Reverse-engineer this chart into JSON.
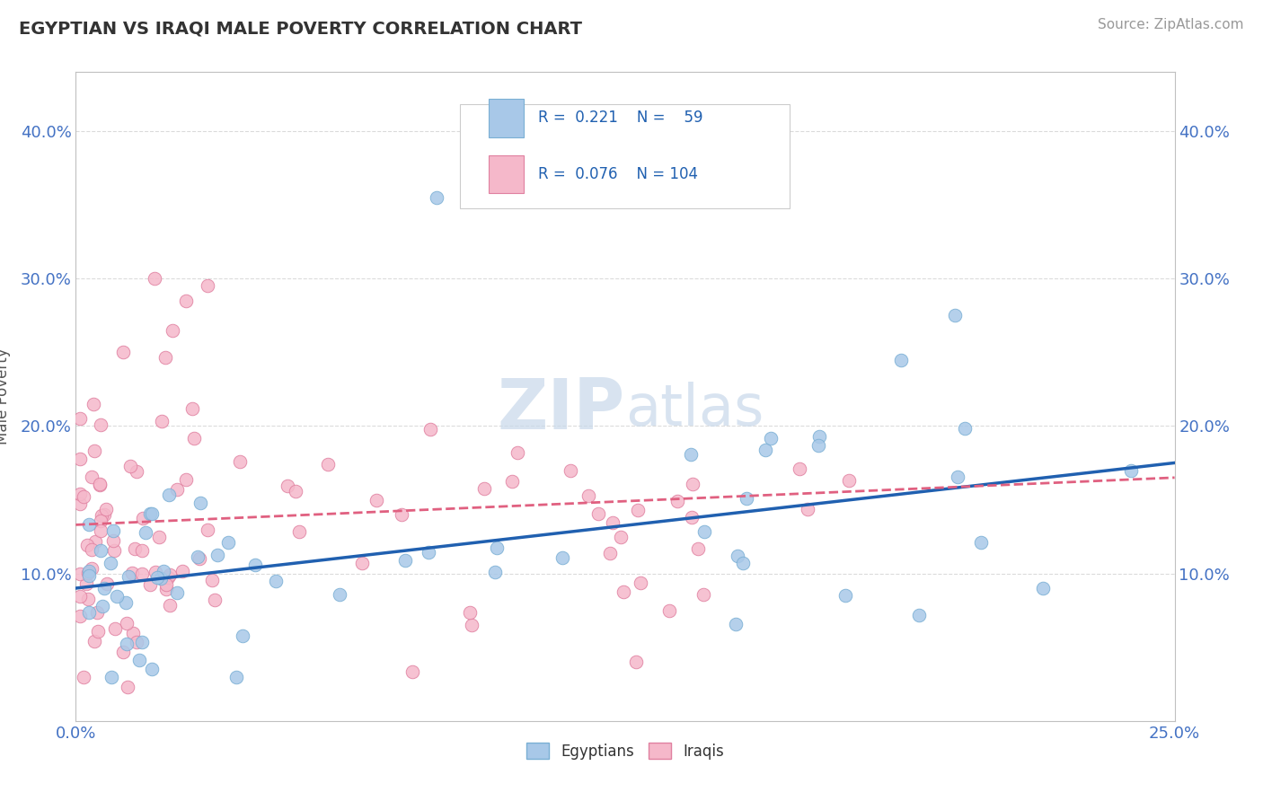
{
  "title": "EGYPTIAN VS IRAQI MALE POVERTY CORRELATION CHART",
  "source": "Source: ZipAtlas.com",
  "ylabel": "Male Poverty",
  "ytick_labels": [
    "10.0%",
    "20.0%",
    "30.0%",
    "40.0%"
  ],
  "ytick_values": [
    0.1,
    0.2,
    0.3,
    0.4
  ],
  "xlim": [
    0.0,
    0.25
  ],
  "ylim": [
    0.0,
    0.44
  ],
  "egyptian_color": "#a8c8e8",
  "iraqi_color": "#f5b8ca",
  "egyptian_edge": "#7aafd4",
  "iraqi_edge": "#e080a0",
  "trend_egyptian_color": "#2060b0",
  "trend_iraqi_color": "#e06080",
  "R_egyptian": 0.221,
  "N_egyptian": 59,
  "R_iraqi": 0.076,
  "N_iraqi": 104,
  "watermark_zip": "ZIP",
  "watermark_atlas": "atlas",
  "background_color": "#ffffff",
  "grid_color": "#d8d8d8",
  "legend_text_color": "#2060b0",
  "legend_R_color": "#2060b0"
}
